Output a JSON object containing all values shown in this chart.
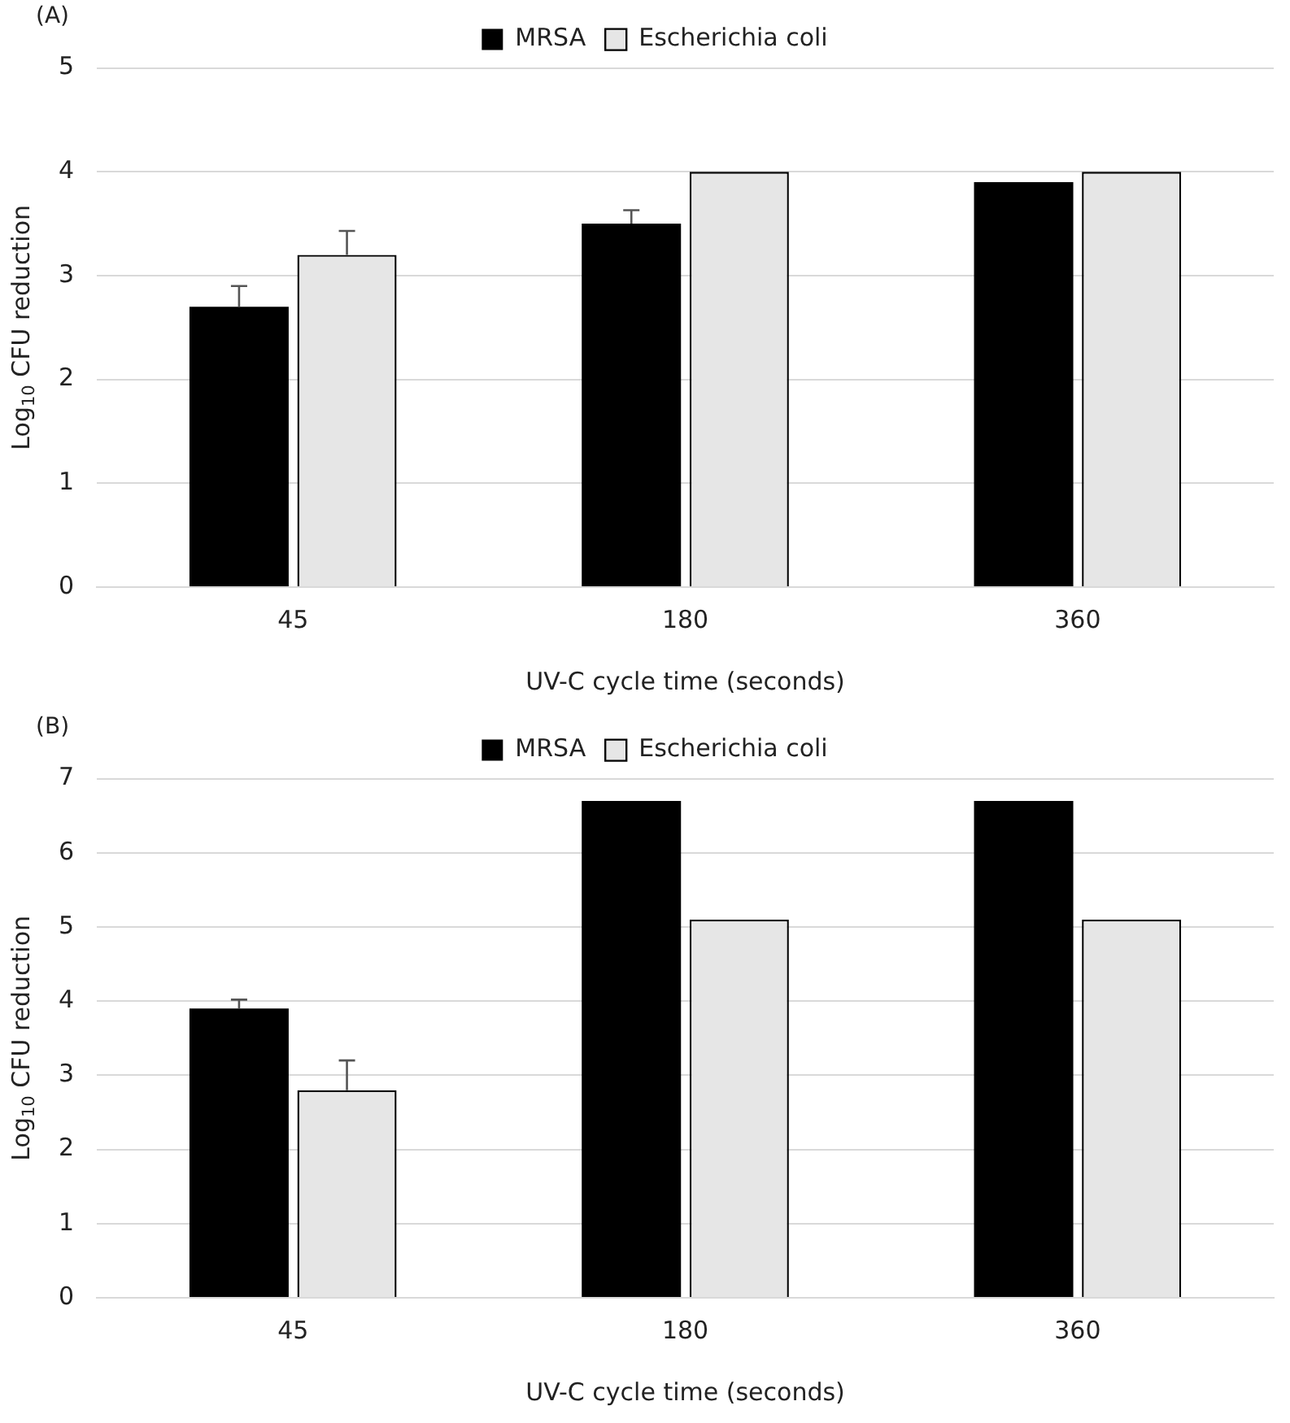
{
  "chart_data": [
    {
      "type": "bar",
      "title": "(A)",
      "xlabel": "UV-C cycle time (seconds)",
      "ylabel": "Log$_{10}$ CFU reduction",
      "categories": [
        "45",
        "180",
        "360"
      ],
      "series": [
        {
          "name": "MRSA",
          "color": "#000000",
          "values": [
            2.7,
            3.5,
            3.9
          ],
          "errors": [
            [
              2.7,
              2.9
            ],
            [
              3.5,
              3.63
            ],
            null
          ]
        },
        {
          "name": "Escherichia coli",
          "color": "#e6e6e6",
          "values": [
            3.2,
            4.0,
            4.0
          ],
          "errors": [
            [
              3.2,
              3.43
            ],
            null,
            null
          ]
        }
      ],
      "ylim": [
        0,
        5
      ],
      "yticks": [
        0,
        1,
        2,
        3,
        4,
        5
      ],
      "grid": "y",
      "legend": "top"
    },
    {
      "type": "bar",
      "title": "(B)",
      "xlabel": "UV-C cycle time (seconds)",
      "ylabel": "Log$_{10}$ CFU reduction",
      "categories": [
        "45",
        "180",
        "360"
      ],
      "series": [
        {
          "name": "MRSA",
          "color": "#000000",
          "values": [
            3.9,
            6.7,
            6.7
          ],
          "errors": [
            [
              3.9,
              4.02
            ],
            null,
            null
          ]
        },
        {
          "name": "Escherichia coli",
          "color": "#e6e6e6",
          "values": [
            2.8,
            5.1,
            5.1
          ],
          "errors": [
            [
              2.8,
              3.2
            ],
            null,
            null
          ]
        }
      ],
      "ylim": [
        0,
        7
      ],
      "yticks": [
        0,
        1,
        2,
        3,
        4,
        5,
        6,
        7
      ],
      "grid": "y",
      "legend": "top"
    }
  ]
}
